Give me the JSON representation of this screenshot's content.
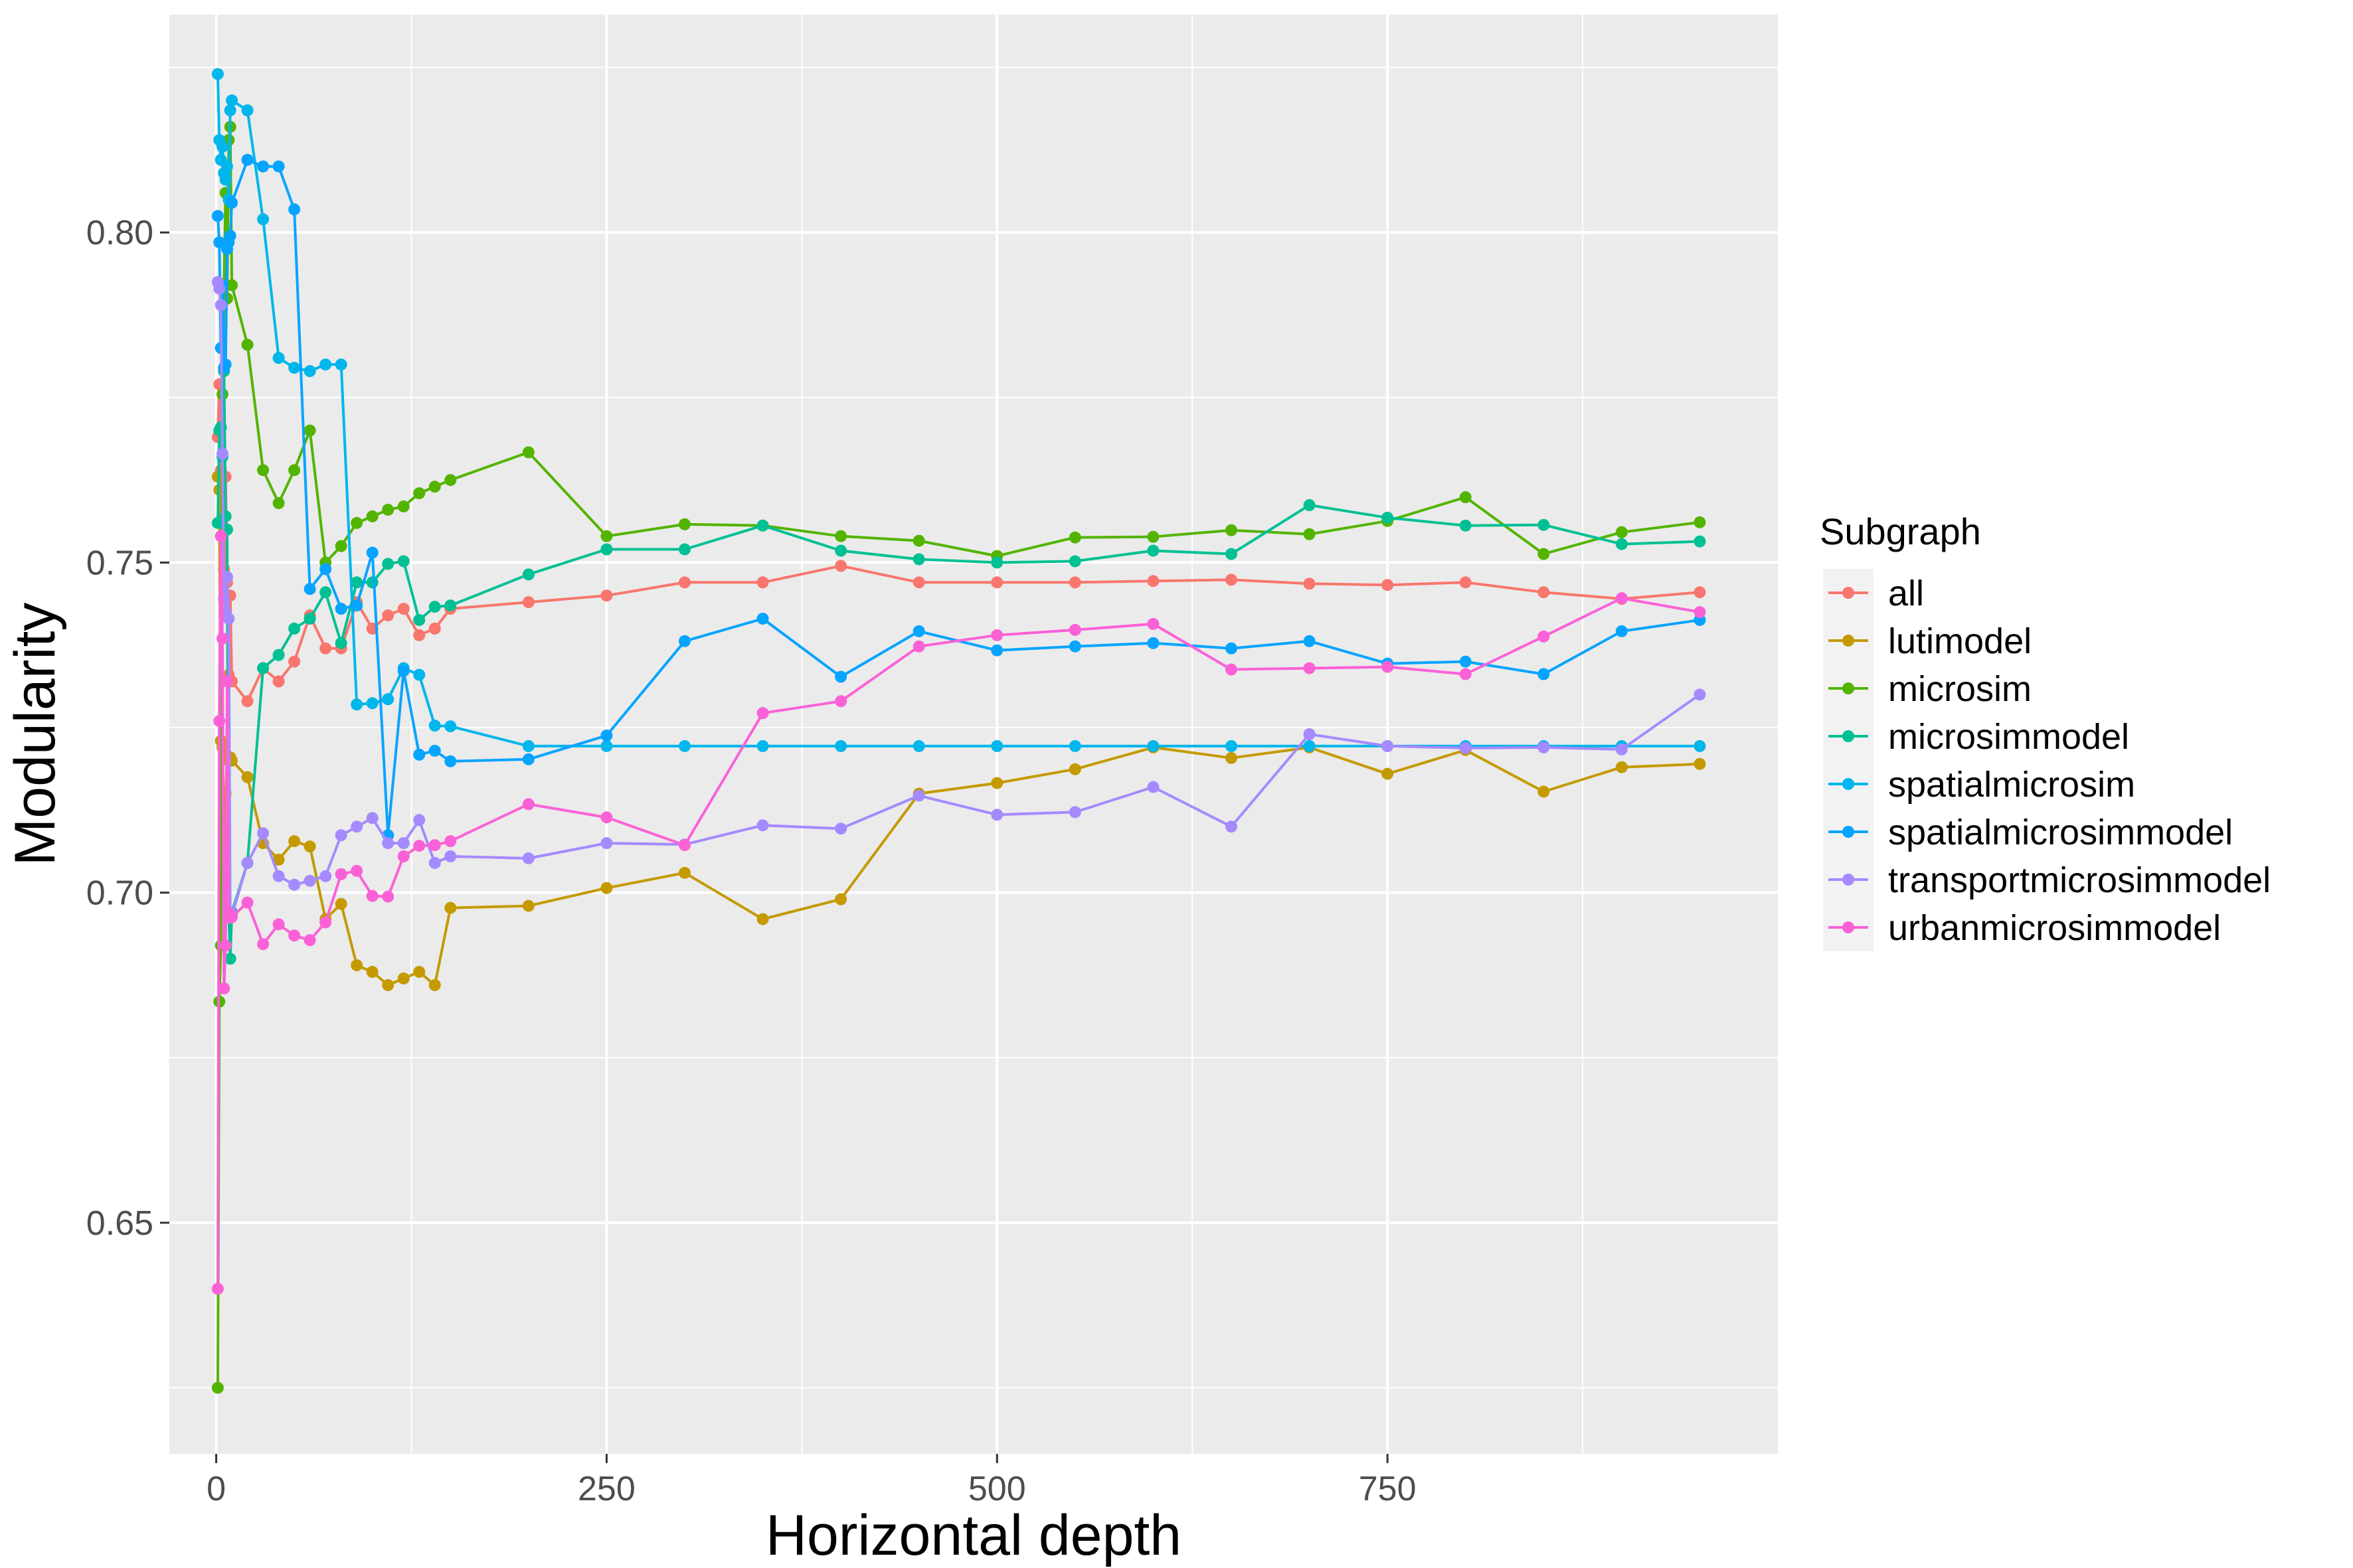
{
  "chart_data": {
    "type": "line",
    "title": "",
    "xlabel": "Horizontal depth",
    "ylabel": "Modularity",
    "xlim": [
      -30,
      1000
    ],
    "ylim": [
      0.615,
      0.833
    ],
    "x_ticks": [
      0,
      250,
      500,
      750
    ],
    "x_tick_labels": [
      "0",
      "250",
      "500",
      "750"
    ],
    "y_ticks": [
      0.65,
      0.7,
      0.75,
      0.8
    ],
    "y_tick_labels": [
      "0.65",
      "0.70",
      "0.75",
      "0.80"
    ],
    "grid": true,
    "legend": {
      "title": "Subgraph",
      "position": "right"
    },
    "series": [
      {
        "name": "all",
        "color": "#F8766D",
        "x": [
          1,
          2,
          3,
          4,
          5,
          6,
          7,
          8,
          9,
          10,
          20,
          30,
          40,
          50,
          60,
          70,
          80,
          90,
          100,
          110,
          120,
          130,
          140,
          150,
          200,
          250,
          300,
          350,
          400,
          450,
          500,
          550,
          600,
          650,
          700,
          750,
          800,
          850,
          900,
          950
        ],
        "y": [
          0.769,
          0.777,
          0.764,
          0.754,
          0.749,
          0.763,
          0.747,
          0.733,
          0.745,
          0.732,
          0.729,
          0.734,
          0.732,
          0.735,
          0.742,
          0.737,
          0.737,
          0.744,
          0.74,
          0.742,
          0.743,
          0.739,
          0.74,
          0.743,
          0.744,
          0.745,
          0.747,
          0.747,
          0.7495,
          0.747,
          0.747,
          0.747,
          0.7472,
          0.7474,
          0.7468,
          0.7466,
          0.747,
          0.7455,
          0.7445,
          0.7455
        ]
      },
      {
        "name": "lutimodel",
        "color": "#C49A00",
        "x": [
          1,
          2,
          3,
          4,
          5,
          6,
          7,
          8,
          9,
          10,
          20,
          30,
          40,
          50,
          60,
          70,
          80,
          90,
          100,
          110,
          120,
          130,
          140,
          150,
          200,
          250,
          300,
          350,
          400,
          450,
          500,
          550,
          600,
          650,
          700,
          750,
          800,
          850,
          900,
          950
        ],
        "y": [
          0.763,
          0.761,
          0.723,
          0.722,
          0.704,
          0.715,
          0.7205,
          0.72,
          0.7205,
          0.72,
          0.7175,
          0.7075,
          0.705,
          0.7078,
          0.707,
          0.696,
          0.6983,
          0.689,
          0.688,
          0.686,
          0.687,
          0.688,
          0.686,
          0.6977,
          0.698,
          0.7007,
          0.703,
          0.696,
          0.699,
          0.715,
          0.7166,
          0.7187,
          0.722,
          0.7204,
          0.722,
          0.718,
          0.7216,
          0.7153,
          0.719,
          0.7195
        ]
      },
      {
        "name": "microsim",
        "color": "#53B400",
        "x": [
          1,
          2,
          3,
          4,
          5,
          6,
          7,
          8,
          9,
          10,
          20,
          30,
          40,
          50,
          60,
          70,
          80,
          90,
          100,
          110,
          120,
          130,
          140,
          150,
          200,
          250,
          300,
          350,
          400,
          450,
          500,
          550,
          600,
          650,
          700,
          750,
          800,
          850,
          900,
          950
        ],
        "y": [
          0.625,
          0.6835,
          0.692,
          0.7755,
          0.792,
          0.806,
          0.79,
          0.814,
          0.816,
          0.792,
          0.783,
          0.764,
          0.759,
          0.764,
          0.77,
          0.75,
          0.7525,
          0.756,
          0.757,
          0.758,
          0.7585,
          0.7605,
          0.7615,
          0.7625,
          0.7667,
          0.754,
          0.7558,
          0.7556,
          0.754,
          0.7533,
          0.751,
          0.7538,
          0.7539,
          0.7549,
          0.7543,
          0.7563,
          0.7599,
          0.7513,
          0.7546,
          0.7561
        ]
      },
      {
        "name": "microsimmodel",
        "color": "#00C094",
        "x": [
          1,
          2,
          3,
          4,
          5,
          6,
          7,
          8,
          9,
          10,
          20,
          30,
          40,
          50,
          60,
          70,
          80,
          90,
          100,
          110,
          120,
          130,
          140,
          150,
          200,
          250,
          300,
          350,
          400,
          450,
          500,
          550,
          600,
          650,
          700,
          750,
          800,
          850,
          900,
          950
        ],
        "y": [
          0.756,
          0.77,
          0.7705,
          0.766,
          0.779,
          0.757,
          0.755,
          0.697,
          0.69,
          0.697,
          0.7045,
          0.734,
          0.736,
          0.74,
          0.7415,
          0.7455,
          0.7378,
          0.747,
          0.747,
          0.7498,
          0.7502,
          0.7413,
          0.7433,
          0.7435,
          0.7482,
          0.752,
          0.752,
          0.7556,
          0.7518,
          0.7505,
          0.75,
          0.7502,
          0.7518,
          0.7513,
          0.7587,
          0.7568,
          0.7556,
          0.7557,
          0.7528,
          0.7532
        ]
      },
      {
        "name": "spatialmicrosim",
        "color": "#00B6EB",
        "x": [
          1,
          2,
          3,
          4,
          5,
          6,
          7,
          8,
          9,
          10,
          20,
          30,
          40,
          50,
          60,
          70,
          80,
          90,
          100,
          110,
          120,
          130,
          140,
          150,
          200,
          250,
          300,
          350,
          400,
          450,
          500,
          550,
          600,
          650,
          700,
          750,
          800,
          850,
          900,
          950
        ],
        "y": [
          0.824,
          0.814,
          0.811,
          0.813,
          0.809,
          0.808,
          0.81,
          0.805,
          0.8185,
          0.82,
          0.8185,
          0.802,
          0.781,
          0.7795,
          0.779,
          0.78,
          0.78,
          0.7285,
          0.7287,
          0.7293,
          0.734,
          0.733,
          0.7253,
          0.7252,
          0.7222,
          0.7222,
          0.7222,
          0.7222,
          0.7222,
          0.7222,
          0.7222,
          0.7222,
          0.7222,
          0.7222,
          0.7222,
          0.7222,
          0.7222,
          0.7222,
          0.7222,
          0.7222
        ]
      },
      {
        "name": "spatialmicrosimmodel",
        "color": "#06A4FF",
        "x": [
          1,
          2,
          3,
          4,
          5,
          6,
          7,
          8,
          9,
          10,
          20,
          30,
          40,
          50,
          60,
          70,
          80,
          90,
          100,
          110,
          120,
          130,
          140,
          150,
          200,
          250,
          300,
          350,
          400,
          450,
          500,
          550,
          600,
          650,
          700,
          750,
          800,
          850,
          900,
          950
        ],
        "y": [
          0.8025,
          0.7985,
          0.7825,
          0.792,
          0.7795,
          0.78,
          0.7975,
          0.7985,
          0.7995,
          0.8045,
          0.811,
          0.81,
          0.81,
          0.8035,
          0.746,
          0.749,
          0.743,
          0.7435,
          0.7515,
          0.7087,
          0.7336,
          0.7209,
          0.7215,
          0.7199,
          0.7202,
          0.7238,
          0.7381,
          0.7415,
          0.7327,
          0.7396,
          0.7367,
          0.7373,
          0.7378,
          0.737,
          0.7381,
          0.7347,
          0.735,
          0.7331,
          0.7396,
          0.7413
        ]
      },
      {
        "name": "transportmicrosimmodel",
        "color": "#A58AFF",
        "x": [
          1,
          2,
          3,
          4,
          5,
          6,
          7,
          8,
          9,
          10,
          20,
          30,
          40,
          50,
          60,
          70,
          80,
          90,
          100,
          110,
          120,
          130,
          140,
          150,
          200,
          250,
          300,
          350,
          400,
          450,
          500,
          550,
          600,
          650,
          700,
          750,
          800,
          850,
          900,
          950
        ],
        "y": [
          0.7925,
          0.7915,
          0.789,
          0.7665,
          0.7445,
          0.7425,
          0.7478,
          0.7415,
          0.697,
          0.6965,
          0.7045,
          0.709,
          0.7025,
          0.7012,
          0.7018,
          0.7025,
          0.7087,
          0.71,
          0.7113,
          0.7075,
          0.7075,
          0.711,
          0.7045,
          0.7055,
          0.7052,
          0.7075,
          0.7073,
          0.7102,
          0.7097,
          0.7147,
          0.7118,
          0.7122,
          0.716,
          0.71,
          0.724,
          0.7222,
          0.7219,
          0.722,
          0.7217,
          0.73
        ]
      },
      {
        "name": "urbanmicrosimmodel",
        "color": "#FB61D7",
        "x": [
          1,
          2,
          3,
          4,
          5,
          6,
          7,
          8,
          9,
          10,
          20,
          30,
          40,
          50,
          60,
          70,
          80,
          90,
          100,
          110,
          120,
          130,
          140,
          150,
          200,
          250,
          300,
          350,
          400,
          450,
          500,
          550,
          600,
          650,
          700,
          750,
          800,
          850,
          900,
          950
        ],
        "y": [
          0.64,
          0.726,
          0.754,
          0.7385,
          0.6855,
          0.692,
          0.732,
          0.697,
          0.6962,
          0.6963,
          0.6985,
          0.6922,
          0.6952,
          0.6935,
          0.6928,
          0.6955,
          0.7028,
          0.7033,
          0.6995,
          0.6994,
          0.7055,
          0.7071,
          0.7072,
          0.7078,
          0.7134,
          0.7114,
          0.7072,
          0.7272,
          0.729,
          0.7373,
          0.739,
          0.7398,
          0.7407,
          0.7338,
          0.734,
          0.7342,
          0.7331,
          0.7388,
          0.7446,
          0.7425
        ]
      }
    ]
  }
}
